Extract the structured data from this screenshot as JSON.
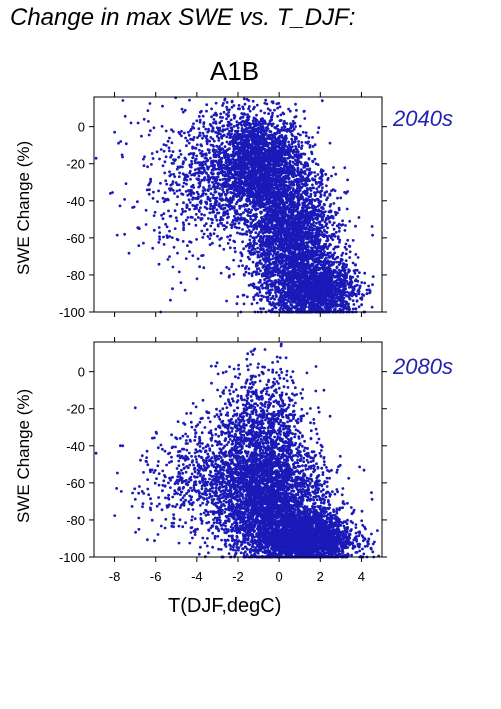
{
  "title": "Change in max SWE vs. T_DJF:",
  "scenario": "A1B",
  "colors": {
    "points": "#1a1ab8",
    "period_label": "#2323b0"
  },
  "chart_data": [
    {
      "type": "scatter",
      "panel_label": "2040s",
      "xlabel": "",
      "ylabel": "SWE Change (%)",
      "xlim": [
        -9,
        5
      ],
      "ylim": [
        -100,
        16
      ],
      "yticks": [
        0,
        -20,
        -40,
        -60,
        -80,
        -100
      ],
      "xticks": [
        -8,
        -6,
        -4,
        -2,
        0,
        2,
        4
      ],
      "x_ticklabels_shown": false,
      "clusters": [
        {
          "x_mean": -1.0,
          "x_sd": 1.1,
          "y_mean": -20,
          "y_sd": 14,
          "n": 2400
        },
        {
          "x_mean": 0.6,
          "x_sd": 1.1,
          "y_mean": -60,
          "y_sd": 18,
          "n": 2600
        },
        {
          "x_mean": 1.8,
          "x_sd": 1.0,
          "y_mean": -88,
          "y_sd": 8,
          "n": 1600
        },
        {
          "x_mean": -3.2,
          "x_sd": 1.3,
          "y_mean": -28,
          "y_sd": 20,
          "n": 700
        },
        {
          "x_mean": -5.5,
          "x_sd": 1.3,
          "y_mean": -38,
          "y_sd": 22,
          "n": 120
        }
      ],
      "marginal_points": [
        {
          "x": -8.9,
          "y": -17
        },
        {
          "x": -8.0,
          "y": -3
        },
        {
          "x": -7.7,
          "y": -8
        },
        {
          "x": -7.2,
          "y": 2
        },
        {
          "x": -6.8,
          "y": -55
        },
        {
          "x": 2.1,
          "y": 14
        }
      ]
    },
    {
      "type": "scatter",
      "panel_label": "2080s",
      "xlabel": "T(DJF,degC)",
      "ylabel": "SWE Change (%)",
      "xlim": [
        -9,
        5
      ],
      "ylim": [
        -100,
        16
      ],
      "yticks": [
        0,
        -20,
        -40,
        -60,
        -80,
        -100
      ],
      "xticks": [
        -8,
        -6,
        -4,
        -2,
        0,
        2,
        4
      ],
      "x_ticklabels_shown": true,
      "clusters": [
        {
          "x_mean": -0.8,
          "x_sd": 1.1,
          "y_mean": -35,
          "y_sd": 18,
          "n": 1200
        },
        {
          "x_mean": -0.5,
          "x_sd": 1.4,
          "y_mean": -70,
          "y_sd": 14,
          "n": 2600
        },
        {
          "x_mean": 1.2,
          "x_sd": 1.2,
          "y_mean": -90,
          "y_sd": 7,
          "n": 2600
        },
        {
          "x_mean": -3.0,
          "x_sd": 1.4,
          "y_mean": -55,
          "y_sd": 16,
          "n": 600
        },
        {
          "x_mean": -5.5,
          "x_sd": 1.2,
          "y_mean": -62,
          "y_sd": 14,
          "n": 120
        }
      ],
      "marginal_points": [
        {
          "x": -8.9,
          "y": -44
        },
        {
          "x": -7.6,
          "y": -40
        },
        {
          "x": -7.9,
          "y": -63
        },
        {
          "x": -3.3,
          "y": 3
        },
        {
          "x": -1.5,
          "y": 1
        }
      ]
    }
  ]
}
